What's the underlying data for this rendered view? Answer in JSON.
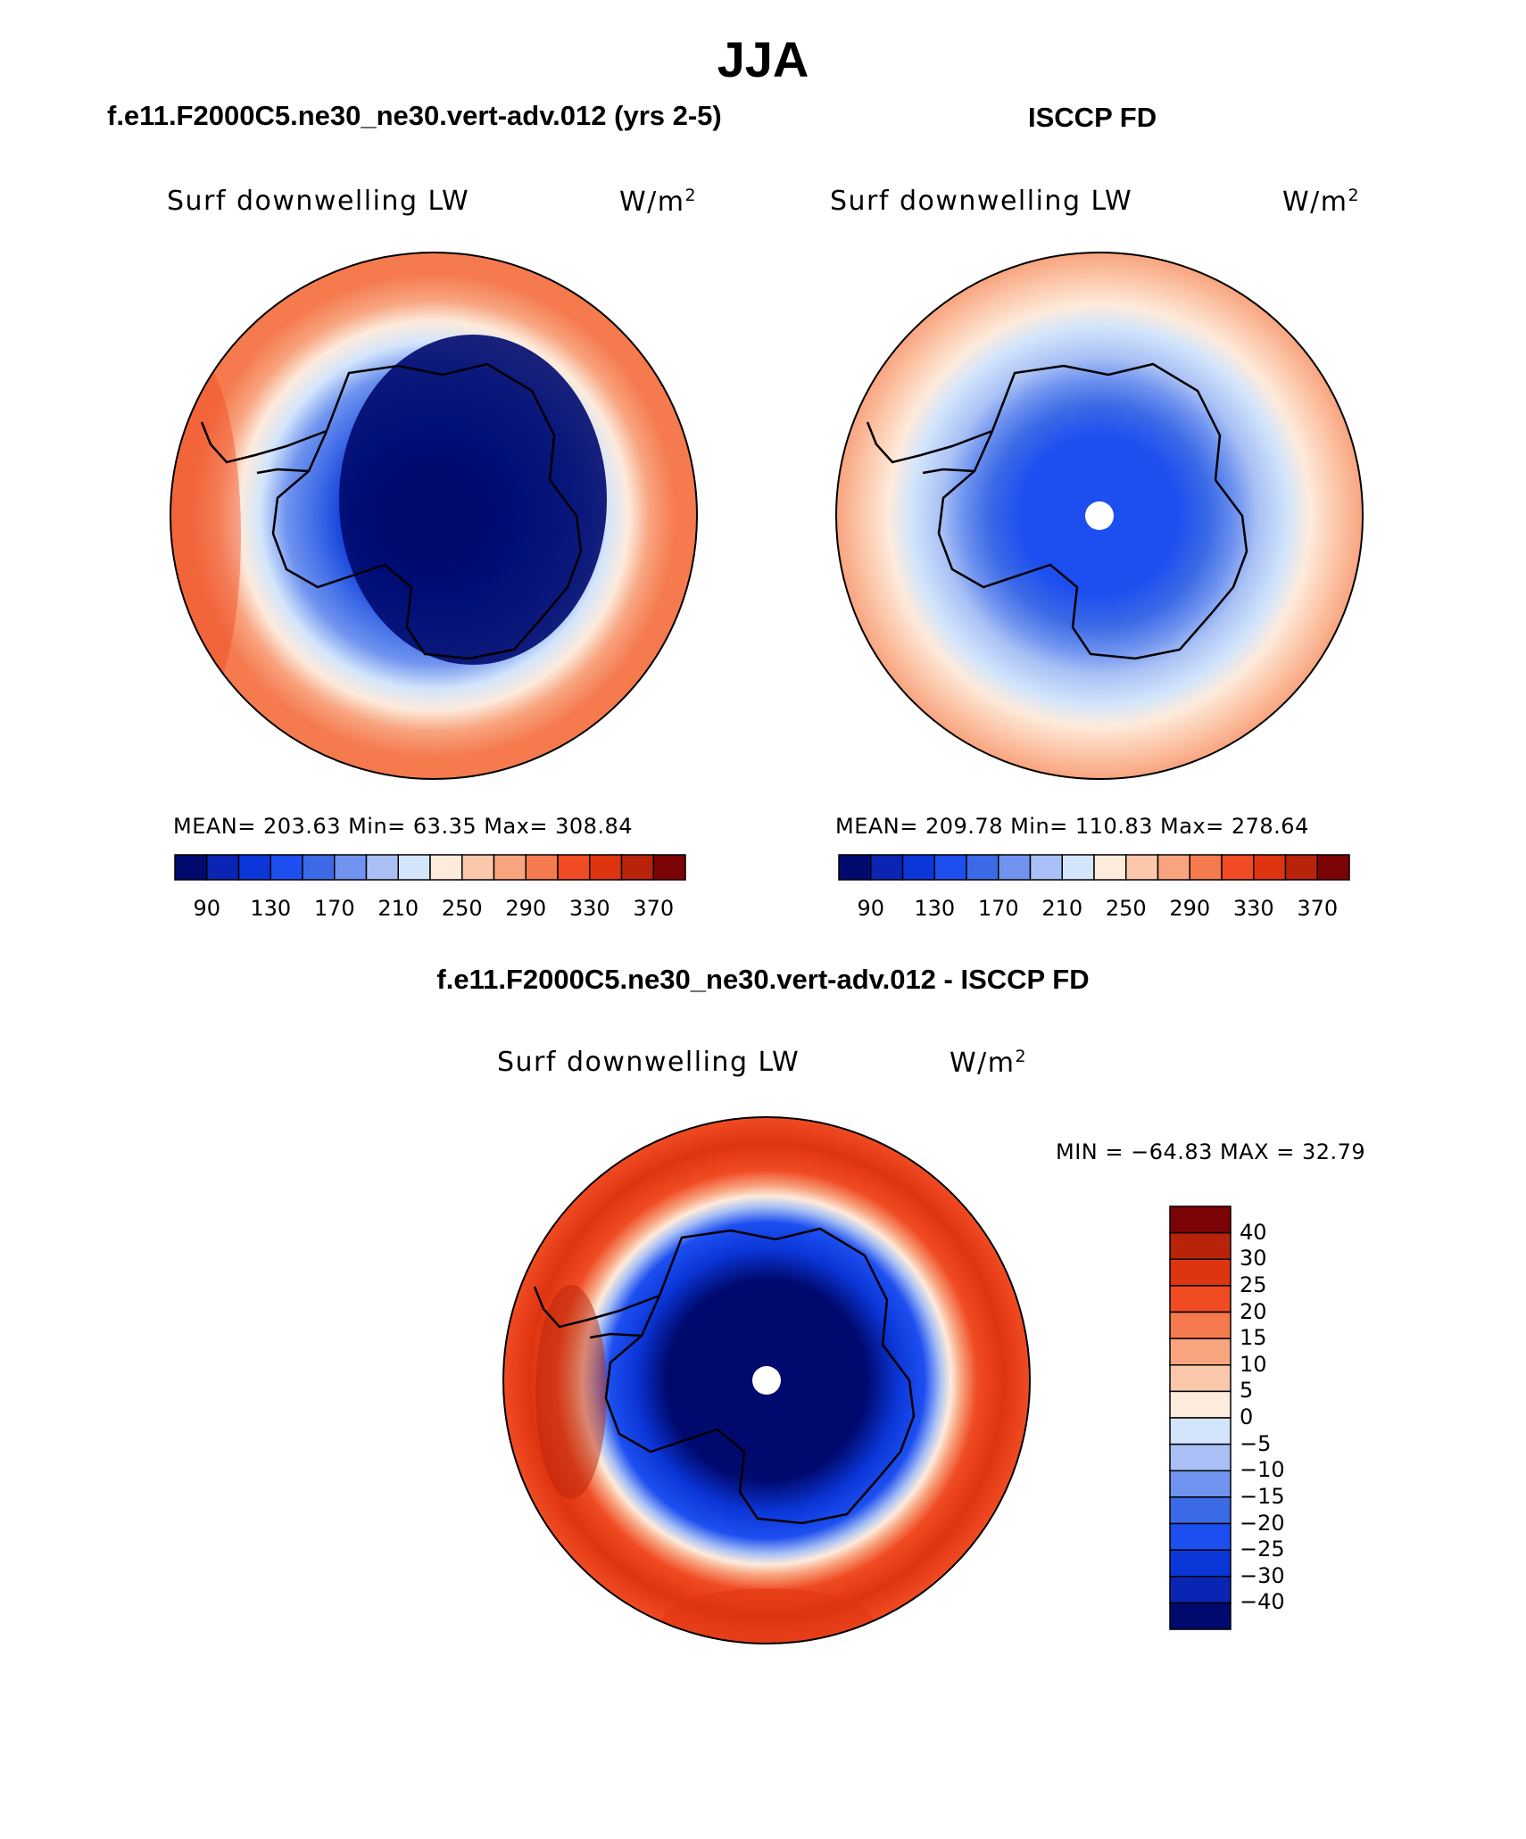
{
  "figure": {
    "title": "JJA",
    "left_title": "f.e11.F2000C5.ne30_ne30.vert-adv.012 (yrs 2-5)",
    "right_title": "ISCCP FD",
    "diff_title": "f.e11.F2000C5.ne30_ne30.vert-adv.012 - ISCCP FD"
  },
  "panels": {
    "model": {
      "variable": "Surf downwelling LW",
      "units": "W/m",
      "units_exp": "2",
      "stats": "MEAN= 203.63   Min=   63.35   Max= 308.84",
      "mean": 203.63,
      "min": 63.35,
      "max": 308.84
    },
    "obs": {
      "variable": "Surf downwelling LW",
      "units": "W/m",
      "units_exp": "2",
      "stats": "MEAN= 209.78   Min= 110.83   Max= 278.64",
      "mean": 209.78,
      "min": 110.83,
      "max": 278.64
    },
    "diff": {
      "variable": "Surf downwelling LW",
      "units": "W/m",
      "units_exp": "2",
      "stats": "MIN = −64.83  MAX =   32.79",
      "min": -64.83,
      "max": 32.79
    }
  },
  "colorbar_abs": {
    "colors": [
      "#000a6e",
      "#0a25b4",
      "#0b36d8",
      "#1d4ff0",
      "#3c6ae6",
      "#6f93ef",
      "#a8c0f5",
      "#d3e5fb",
      "#fdebdc",
      "#fcc8ab",
      "#f8a47f",
      "#f57a4e",
      "#f04b23",
      "#df3410",
      "#b8230a",
      "#7c0306"
    ],
    "ticks": [
      "90",
      "130",
      "170",
      "210",
      "250",
      "290",
      "330",
      "370"
    ]
  },
  "colorbar_diff": {
    "colors": [
      "#000a6e",
      "#0a25b4",
      "#0b36d8",
      "#1d4ff0",
      "#3c6ae6",
      "#6f93ef",
      "#a8c0f5",
      "#d3e5fb",
      "#fdebdc",
      "#fcc8ab",
      "#f8a47f",
      "#f57a4e",
      "#f04b23",
      "#df3410",
      "#b8230a",
      "#7c0306"
    ],
    "ticks": [
      "40",
      "30",
      "25",
      "20",
      "15",
      "10",
      "5",
      "0",
      "−5",
      "−10",
      "−15",
      "−20",
      "−25",
      "−30",
      "−40"
    ]
  }
}
